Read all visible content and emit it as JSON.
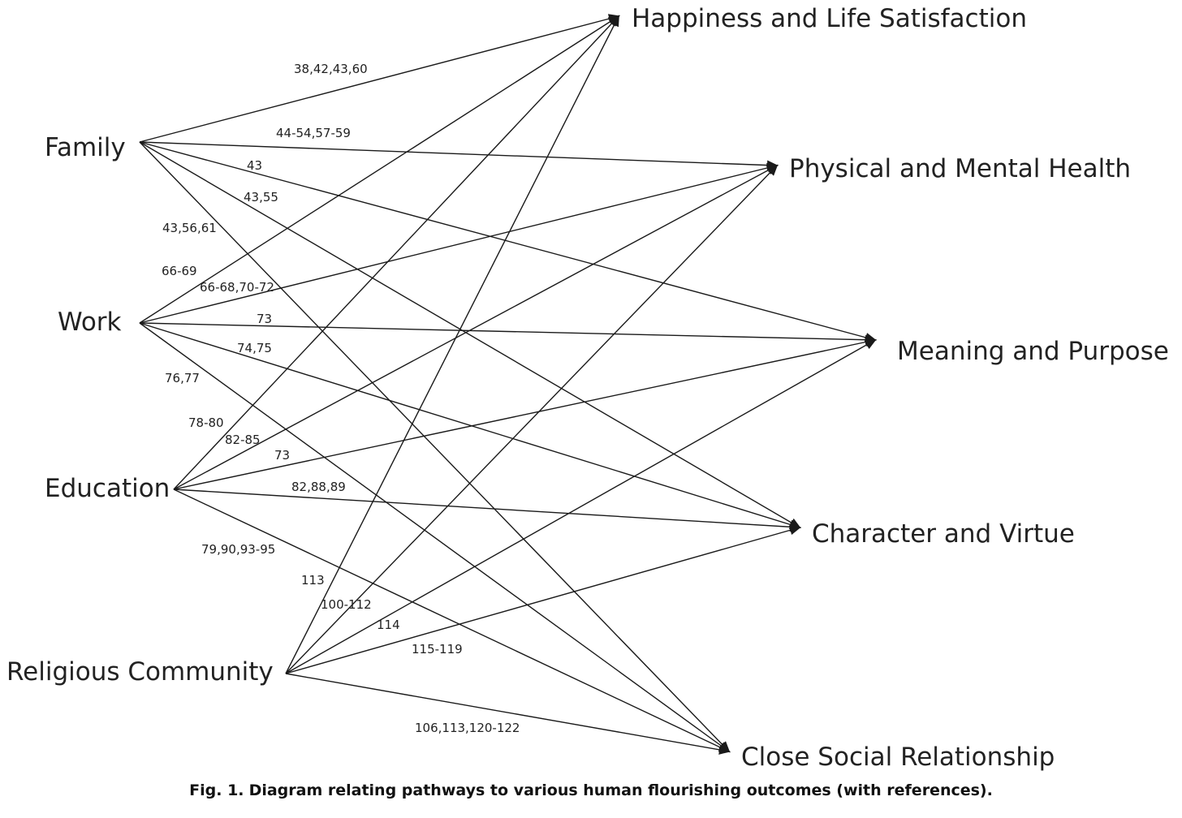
{
  "pathways": [
    {
      "id": "family",
      "label": "Family"
    },
    {
      "id": "work",
      "label": "Work"
    },
    {
      "id": "education",
      "label": "Education"
    },
    {
      "id": "religious",
      "label": "Religious Community"
    }
  ],
  "outcomes": [
    {
      "id": "happiness",
      "label": "Happiness and Life Satisfaction"
    },
    {
      "id": "health",
      "label": "Physical and Mental Health"
    },
    {
      "id": "meaning",
      "label": "Meaning and Purpose"
    },
    {
      "id": "character",
      "label": "Character and Virtue"
    },
    {
      "id": "social",
      "label": "Close Social Relationship"
    }
  ],
  "edges": [
    {
      "from": "family",
      "to": "happiness",
      "refs": "38,42,43,60"
    },
    {
      "from": "family",
      "to": "health",
      "refs": "44-54,57-59"
    },
    {
      "from": "family",
      "to": "meaning",
      "refs": "43"
    },
    {
      "from": "family",
      "to": "character",
      "refs": "43,55"
    },
    {
      "from": "family",
      "to": "social",
      "refs": "43,56,61"
    },
    {
      "from": "work",
      "to": "happiness",
      "refs": "66-69"
    },
    {
      "from": "work",
      "to": "health",
      "refs": "66-68,70-72"
    },
    {
      "from": "work",
      "to": "meaning",
      "refs": "73"
    },
    {
      "from": "work",
      "to": "character",
      "refs": "74,75"
    },
    {
      "from": "work",
      "to": "social",
      "refs": "76,77"
    },
    {
      "from": "education",
      "to": "happiness",
      "refs": "78-80"
    },
    {
      "from": "education",
      "to": "health",
      "refs": "82-85"
    },
    {
      "from": "education",
      "to": "meaning",
      "refs": "73"
    },
    {
      "from": "education",
      "to": "character",
      "refs": "82,88,89"
    },
    {
      "from": "education",
      "to": "social",
      "refs": "79,90,93-95"
    },
    {
      "from": "religious",
      "to": "happiness",
      "refs": "113"
    },
    {
      "from": "religious",
      "to": "health",
      "refs": "100-112"
    },
    {
      "from": "religious",
      "to": "meaning",
      "refs": "114"
    },
    {
      "from": "religious",
      "to": "character",
      "refs": "115-119"
    },
    {
      "from": "religious",
      "to": "social",
      "refs": "106,113,120-122"
    }
  ],
  "caption": {
    "number": "Fig. 1.",
    "text": "Diagram relating pathways to various human flourishing outcomes (with references)."
  }
}
